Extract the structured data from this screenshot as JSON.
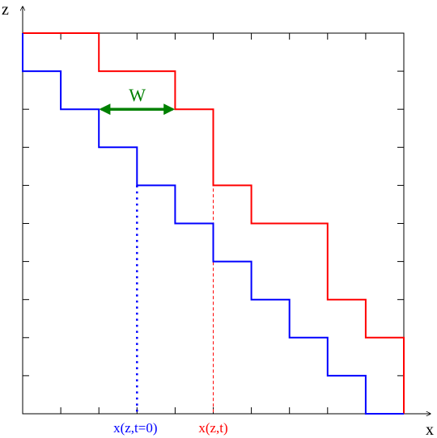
{
  "axes": {
    "x_label": "x",
    "z_label": "z"
  },
  "labels": {
    "width": "W",
    "initial_position": "x(z,t=0)",
    "current_position": "x(z,t)"
  },
  "grid": {
    "x_ticks": 10,
    "z_ticks": 10
  },
  "colors": {
    "blue": "#0000ff",
    "red": "#ff0000",
    "green": "#008000",
    "frame": "#000000"
  },
  "staircases": {
    "blue": [
      [
        0,
        10
      ],
      [
        0,
        9
      ],
      [
        1,
        9
      ],
      [
        1,
        8
      ],
      [
        2,
        8
      ],
      [
        2,
        7
      ],
      [
        3,
        7
      ],
      [
        3,
        6
      ],
      [
        4,
        6
      ],
      [
        4,
        5
      ],
      [
        5,
        5
      ],
      [
        5,
        4
      ],
      [
        6,
        4
      ],
      [
        6,
        3
      ],
      [
        7,
        3
      ],
      [
        7,
        2
      ],
      [
        8,
        2
      ],
      [
        8,
        1
      ],
      [
        9,
        1
      ],
      [
        9,
        0
      ],
      [
        10,
        0
      ]
    ],
    "red": [
      [
        0,
        10
      ],
      [
        2,
        10
      ],
      [
        2,
        9
      ],
      [
        4,
        9
      ],
      [
        4,
        8
      ],
      [
        5,
        8
      ],
      [
        5,
        6
      ],
      [
        6,
        6
      ],
      [
        6,
        5
      ],
      [
        8,
        5
      ],
      [
        8,
        3
      ],
      [
        9,
        3
      ],
      [
        9,
        2
      ],
      [
        10,
        2
      ],
      [
        10,
        0
      ]
    ]
  },
  "markers": {
    "initial_x": 3,
    "initial_z_top": 6,
    "current_x": 5,
    "current_z_top": 8,
    "width_from_x": 2,
    "width_to_x": 4,
    "width_z": 8
  }
}
